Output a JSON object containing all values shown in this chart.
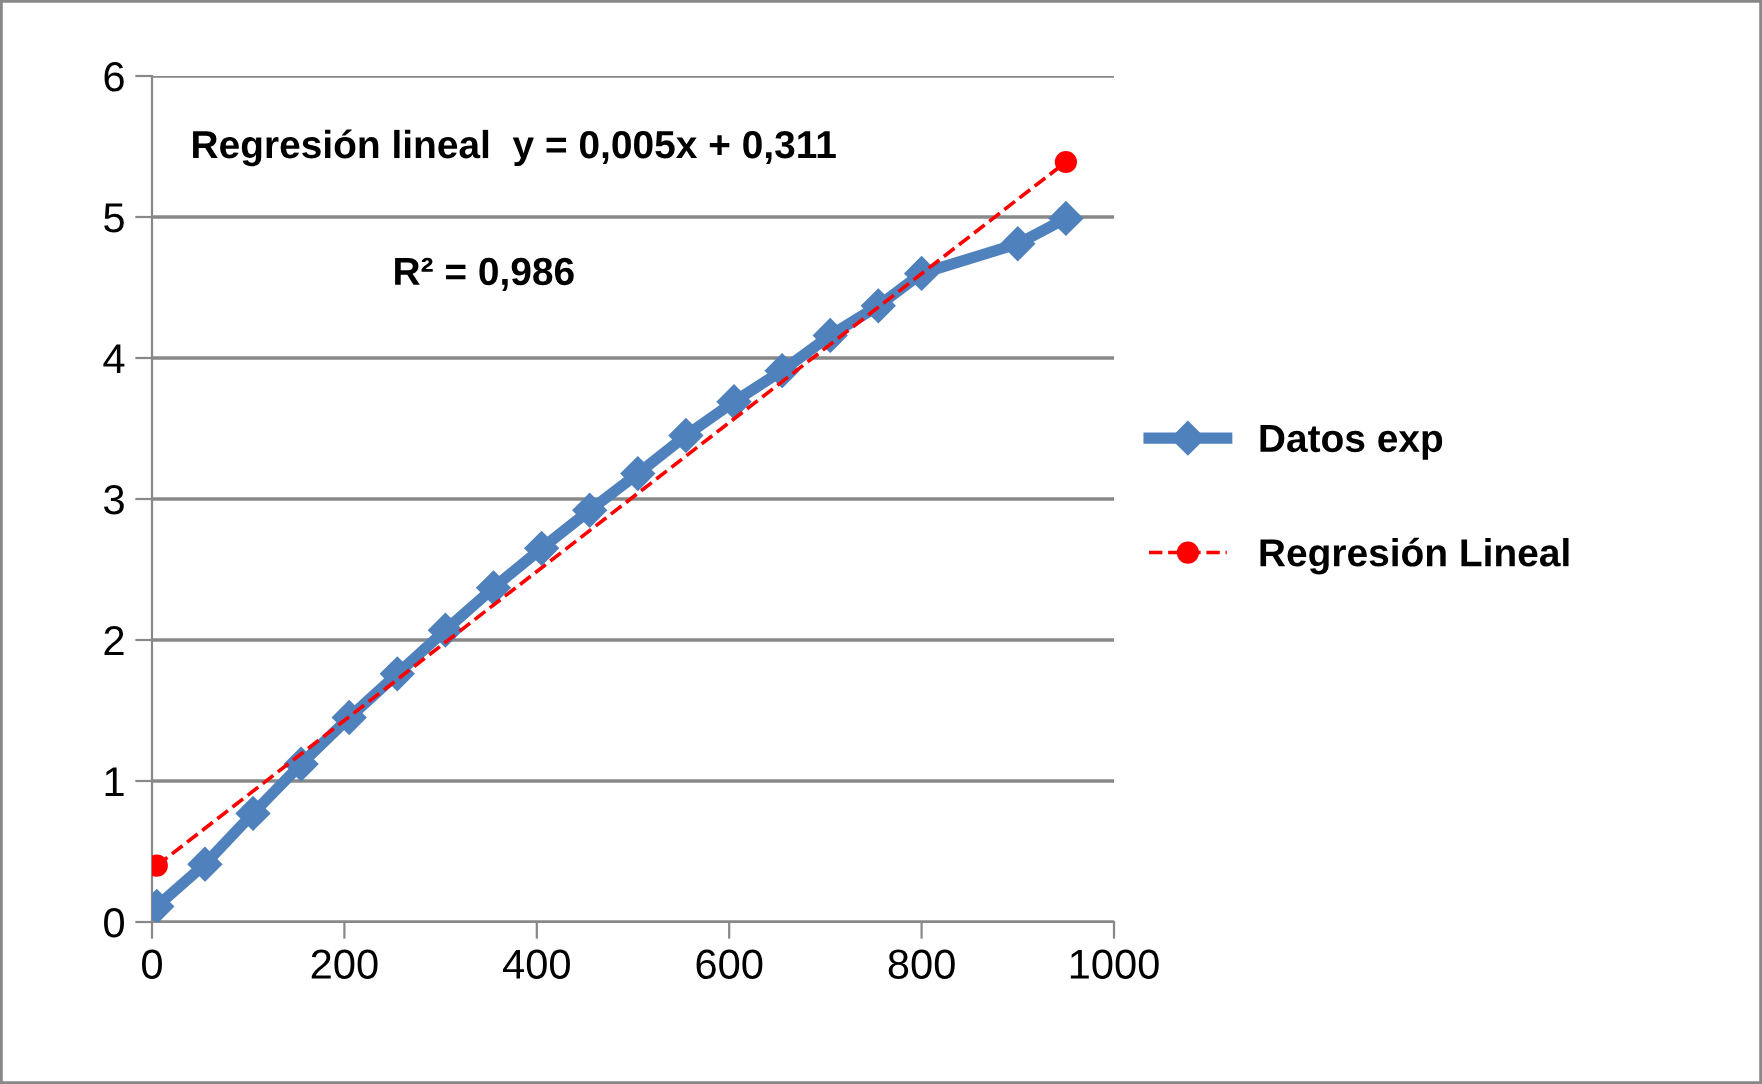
{
  "chart_data": {
    "type": "line",
    "xlim": [
      0,
      1000
    ],
    "xticks": [
      0,
      200,
      400,
      600,
      800,
      1000
    ],
    "ylim": [
      0,
      6
    ],
    "yticks": [
      0,
      1,
      2,
      3,
      4,
      5,
      6
    ],
    "grid": "y",
    "legend": "right",
    "annotations": [
      "Regresión lineal  y = 0,005x + 0,311",
      "R² = 0,986"
    ],
    "series": [
      {
        "name": "Datos exp",
        "color": "#4f81bd",
        "marker": "diamond",
        "line_style": "solid",
        "x": [
          5,
          55,
          105,
          155,
          205,
          255,
          305,
          355,
          405,
          455,
          505,
          555,
          605,
          655,
          705,
          755,
          800,
          900,
          950
        ],
        "values": [
          0.11,
          0.41,
          0.77,
          1.12,
          1.45,
          1.76,
          2.07,
          2.37,
          2.65,
          2.92,
          3.18,
          3.45,
          3.69,
          3.91,
          4.16,
          4.37,
          4.6,
          4.81,
          4.99
        ]
      },
      {
        "name": "Regresión Lineal",
        "color": "#ff0000",
        "marker": "circle",
        "line_style": "dashed",
        "x": [
          5,
          950
        ],
        "values": [
          0.4,
          5.39
        ]
      }
    ]
  }
}
